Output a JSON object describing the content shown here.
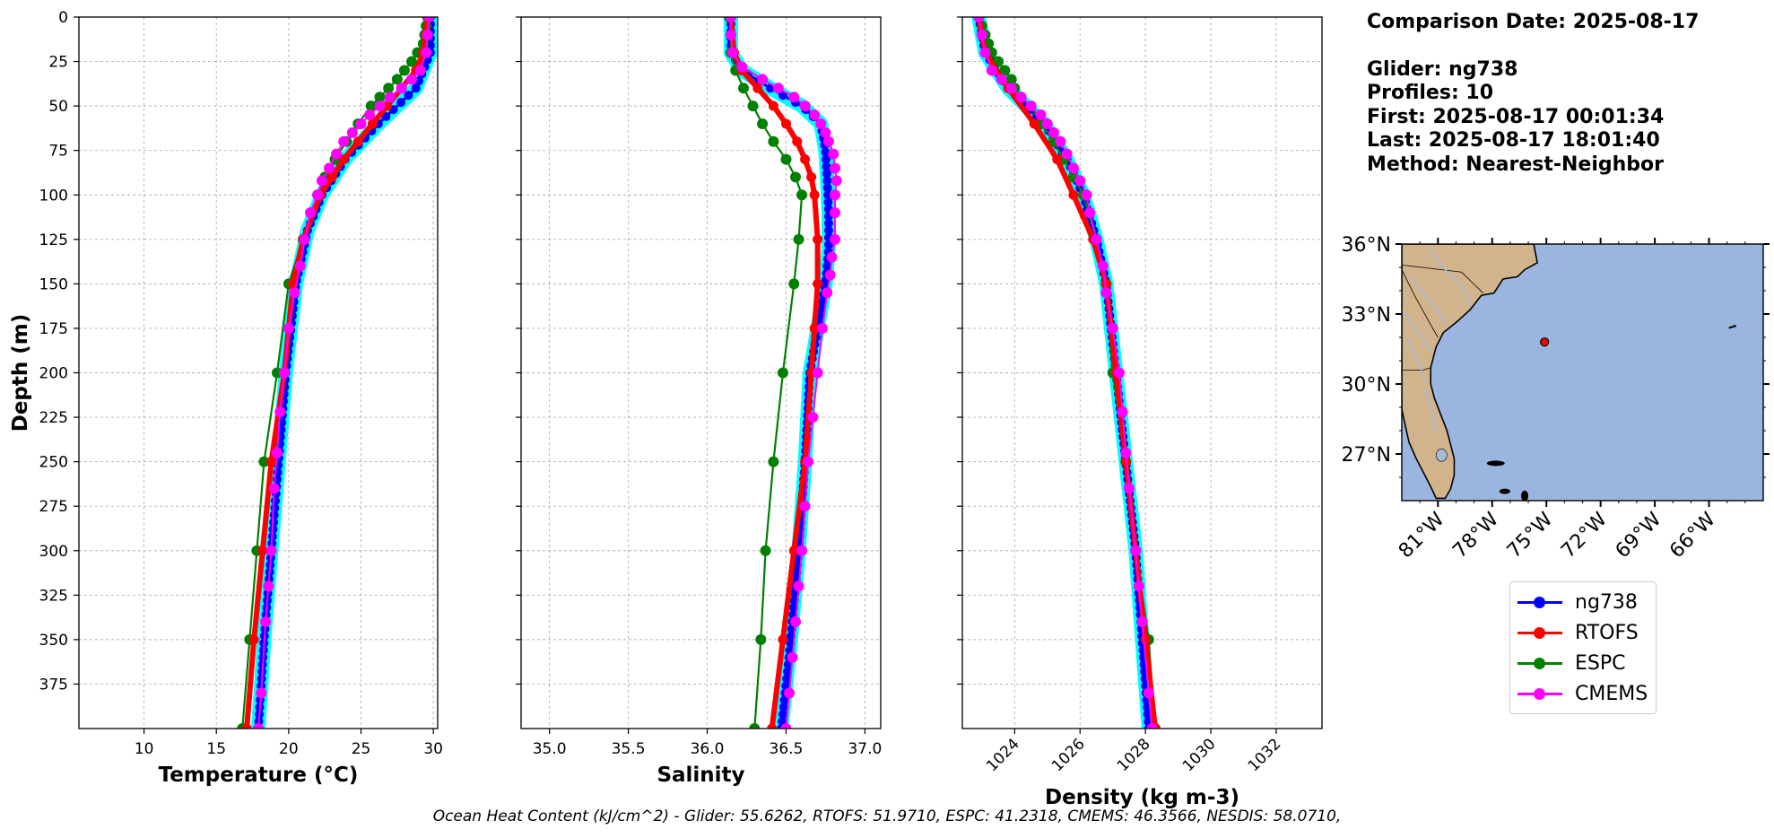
{
  "info": {
    "comparison_date": "Comparison Date: 2025-08-17",
    "glider": "Glider: ng738",
    "profiles": "Profiles: 10",
    "first": "First: 2025-08-17 00:01:34",
    "last": "Last: 2025-08-17 18:01:40",
    "method": "Method: Nearest-Neighbor"
  },
  "footer": "Ocean Heat Content (kJ/cm^2) - Glider: 55.6262,  RTOFS: 51.9710,  ESPC: 41.2318,  CMEMS: 46.3566,  NESDIS: 58.0710,",
  "colors": {
    "ng738": "#0000ff",
    "RTOFS": "#ff0000",
    "ESPC": "#008000",
    "CMEMS": "#ff00ff",
    "glider_envelope": "#00ffff",
    "land": "#d2b48c",
    "ocean": "#9ab6e0",
    "grid": "#b0b0b0"
  },
  "legend": [
    {
      "label": "ng738",
      "color": "#0000ff"
    },
    {
      "label": "RTOFS",
      "color": "#ff0000"
    },
    {
      "label": "ESPC",
      "color": "#008000"
    },
    {
      "label": "CMEMS",
      "color": "#ff00ff"
    }
  ],
  "chart_data": [
    {
      "type": "line",
      "xlabel": "Temperature (°C)",
      "ylabel": "Depth (m)",
      "xlim": [
        5.5,
        30.3
      ],
      "ylim": [
        400,
        0
      ],
      "xticks": [
        10,
        15,
        20,
        25,
        30
      ],
      "yticks": [
        0,
        25,
        50,
        75,
        100,
        125,
        150,
        175,
        200,
        225,
        250,
        275,
        300,
        325,
        350,
        375
      ],
      "grid": true,
      "series": [
        {
          "name": "ng738",
          "depth": [
            0,
            20,
            40,
            60,
            80,
            100,
            120,
            150,
            200,
            250,
            300,
            350,
            400
          ],
          "values": [
            29.8,
            29.8,
            28.8,
            26.2,
            23.9,
            22.3,
            21.3,
            20.5,
            19.8,
            19.3,
            18.8,
            18.3,
            17.9
          ]
        },
        {
          "name": "RTOFS",
          "depth": [
            0,
            10,
            20,
            30,
            40,
            50,
            60,
            70,
            80,
            90,
            100,
            125,
            150,
            200,
            250,
            300,
            350,
            400
          ],
          "values": [
            29.6,
            29.5,
            29.3,
            28.8,
            27.8,
            26.8,
            25.8,
            24.8,
            23.8,
            23.0,
            22.2,
            21.0,
            20.3,
            19.7,
            18.8,
            18.2,
            17.6,
            17.1
          ]
        },
        {
          "name": "ESPC",
          "depth": [
            0,
            5,
            10,
            15,
            20,
            25,
            30,
            35,
            40,
            45,
            50,
            60,
            70,
            80,
            90,
            100,
            125,
            150,
            200,
            250,
            300,
            350,
            400
          ],
          "values": [
            29.6,
            29.5,
            29.4,
            29.3,
            28.9,
            28.5,
            28.0,
            27.5,
            26.9,
            26.3,
            25.7,
            24.8,
            24.0,
            23.2,
            22.5,
            22.0,
            21.0,
            20.0,
            19.2,
            18.3,
            17.8,
            17.3,
            16.8
          ]
        },
        {
          "name": "CMEMS",
          "depth": [
            0,
            10,
            20,
            30,
            35,
            40,
            45,
            50,
            55,
            60,
            65,
            70,
            77,
            85,
            92,
            100,
            110,
            125,
            140,
            155,
            175,
            200,
            222,
            245,
            265,
            300,
            320,
            340,
            380,
            400
          ],
          "values": [
            29.7,
            29.6,
            29.5,
            29.1,
            28.5,
            27.8,
            27.0,
            26.3,
            25.6,
            25.0,
            24.4,
            23.8,
            23.3,
            22.8,
            22.3,
            22.0,
            21.5,
            21.1,
            20.8,
            20.4,
            20.0,
            19.7,
            19.4,
            19.2,
            19.0,
            18.8,
            18.6,
            18.4,
            18.1,
            17.9
          ]
        }
      ]
    },
    {
      "type": "line",
      "xlabel": "Salinity",
      "xlim": [
        34.82,
        37.1
      ],
      "ylim": [
        400,
        0
      ],
      "xticks": [
        35.0,
        35.5,
        36.0,
        36.5,
        37.0
      ],
      "grid": true,
      "series": [
        {
          "name": "ng738",
          "depth": [
            0,
            20,
            30,
            40,
            50,
            60,
            75,
            90,
            110,
            130,
            150,
            200,
            250,
            300,
            350,
            400
          ],
          "values": [
            36.15,
            36.15,
            36.22,
            36.4,
            36.6,
            36.72,
            36.75,
            36.76,
            36.77,
            36.77,
            36.75,
            36.65,
            36.62,
            36.58,
            36.53,
            36.47
          ]
        },
        {
          "name": "RTOFS",
          "depth": [
            0,
            20,
            30,
            40,
            50,
            60,
            70,
            80,
            90,
            100,
            125,
            150,
            175,
            200,
            250,
            300,
            350,
            400
          ],
          "values": [
            36.15,
            36.17,
            36.22,
            36.32,
            36.42,
            36.5,
            36.57,
            36.62,
            36.66,
            36.68,
            36.7,
            36.7,
            36.68,
            36.66,
            36.62,
            36.55,
            36.48,
            36.41
          ]
        },
        {
          "name": "ESPC",
          "depth": [
            0,
            10,
            20,
            30,
            40,
            50,
            60,
            70,
            80,
            90,
            100,
            125,
            150,
            200,
            250,
            300,
            350,
            400
          ],
          "values": [
            36.14,
            36.15,
            36.15,
            36.18,
            36.23,
            36.29,
            36.35,
            36.42,
            36.5,
            36.56,
            36.6,
            36.58,
            36.55,
            36.48,
            36.42,
            36.37,
            36.34,
            36.3
          ]
        },
        {
          "name": "CMEMS",
          "depth": [
            0,
            10,
            20,
            28,
            35,
            40,
            45,
            50,
            55,
            60,
            65,
            70,
            77,
            85,
            92,
            100,
            110,
            125,
            135,
            145,
            155,
            175,
            200,
            225,
            250,
            275,
            300,
            320,
            340,
            360,
            380,
            400
          ],
          "values": [
            36.15,
            36.15,
            36.16,
            36.22,
            36.35,
            36.45,
            36.55,
            36.62,
            36.68,
            36.72,
            36.75,
            36.77,
            36.8,
            36.81,
            36.82,
            36.81,
            36.81,
            36.81,
            36.79,
            36.78,
            36.76,
            36.73,
            36.7,
            36.67,
            36.64,
            36.62,
            36.6,
            36.58,
            36.56,
            36.54,
            36.52,
            36.5
          ]
        }
      ]
    },
    {
      "type": "line",
      "xlabel": "Density (kg m-3)",
      "xlim": [
        1022.4,
        1033.4
      ],
      "ylim": [
        400,
        0
      ],
      "xticks": [
        1024,
        1026,
        1028,
        1030,
        1032
      ],
      "grid": true,
      "series": [
        {
          "name": "ng738",
          "depth": [
            0,
            20,
            40,
            60,
            80,
            100,
            125,
            150,
            200,
            250,
            300,
            350,
            400
          ],
          "values": [
            1022.9,
            1023.1,
            1023.8,
            1024.9,
            1025.6,
            1026.1,
            1026.5,
            1026.8,
            1027.1,
            1027.4,
            1027.7,
            1027.9,
            1028.1
          ]
        },
        {
          "name": "RTOFS",
          "depth": [
            0,
            20,
            40,
            60,
            80,
            100,
            125,
            150,
            200,
            250,
            300,
            350,
            400
          ],
          "values": [
            1022.9,
            1023.1,
            1023.8,
            1024.6,
            1025.3,
            1025.8,
            1026.4,
            1026.8,
            1027.1,
            1027.4,
            1027.7,
            1028.0,
            1028.3
          ]
        },
        {
          "name": "ESPC",
          "depth": [
            0,
            5,
            10,
            15,
            20,
            25,
            30,
            35,
            40,
            45,
            50,
            60,
            70,
            80,
            90,
            100,
            125,
            150,
            200,
            250,
            300,
            350,
            400
          ],
          "values": [
            1022.9,
            1023.0,
            1023.1,
            1023.2,
            1023.3,
            1023.5,
            1023.7,
            1023.9,
            1024.0,
            1024.2,
            1024.5,
            1024.8,
            1025.2,
            1025.5,
            1025.8,
            1026.1,
            1026.5,
            1026.8,
            1027.0,
            1027.4,
            1027.7,
            1028.1,
            1028.3
          ]
        },
        {
          "name": "CMEMS",
          "depth": [
            0,
            10,
            20,
            30,
            35,
            40,
            45,
            50,
            55,
            60,
            65,
            70,
            77,
            85,
            92,
            100,
            110,
            125,
            140,
            155,
            175,
            200,
            222,
            245,
            265,
            300,
            320,
            340,
            380,
            400
          ],
          "values": [
            1022.9,
            1023.0,
            1023.1,
            1023.3,
            1023.6,
            1023.9,
            1024.2,
            1024.5,
            1024.8,
            1025.0,
            1025.2,
            1025.4,
            1025.6,
            1025.8,
            1026.0,
            1026.2,
            1026.3,
            1026.5,
            1026.7,
            1026.8,
            1027.0,
            1027.2,
            1027.3,
            1027.4,
            1027.5,
            1027.7,
            1027.8,
            1027.9,
            1028.1,
            1028.2
          ]
        }
      ]
    },
    {
      "type": "map",
      "lon_range": [
        -83,
        -63
      ],
      "lat_range": [
        25,
        36
      ],
      "xticks": [
        "81°W",
        "78°W",
        "75°W",
        "72°W",
        "69°W",
        "66°W"
      ],
      "xtick_values": [
        -81,
        -78,
        -75,
        -72,
        -69,
        -66
      ],
      "yticks": [
        "36°N",
        "33°N",
        "30°N",
        "27°N"
      ],
      "ytick_values": [
        36,
        33,
        30,
        27
      ],
      "marker": {
        "lon": -75.1,
        "lat": 31.8,
        "color": "#ff0000"
      }
    }
  ]
}
